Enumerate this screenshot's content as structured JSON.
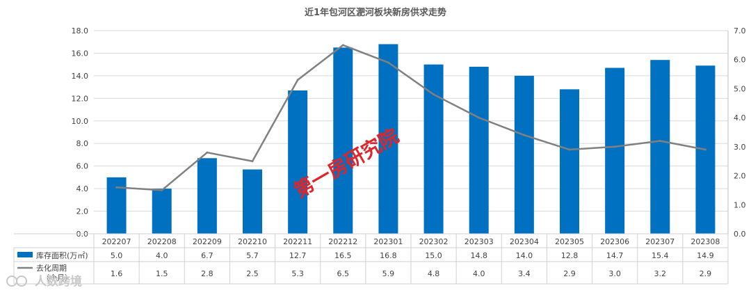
{
  "chart_data": {
    "type": "bar",
    "title": "近1年包河区淝河板块新房供求走势",
    "categories": [
      "202207",
      "202208",
      "202209",
      "202210",
      "202211",
      "202212",
      "202301",
      "202302",
      "202303",
      "202304",
      "202305",
      "202306",
      "202307",
      "202308"
    ],
    "series": [
      {
        "name": "库存面积(万㎡)",
        "type": "bar",
        "axis": "left",
        "values": [
          5.0,
          4.0,
          6.7,
          5.7,
          12.7,
          16.5,
          16.8,
          15.0,
          14.8,
          14.0,
          12.8,
          14.7,
          15.4,
          14.9
        ],
        "labels": [
          "5.0",
          "4.0",
          "6.7",
          "5.7",
          "12.7",
          "16.5",
          "16.8",
          "15.0",
          "14.8",
          "14.0",
          "12.8",
          "14.7",
          "15.4",
          "14.9"
        ]
      },
      {
        "name": "去化周期（个月）",
        "type": "line",
        "axis": "right",
        "values": [
          1.6,
          1.5,
          2.8,
          2.5,
          5.3,
          6.5,
          5.9,
          4.8,
          4.0,
          3.4,
          2.9,
          3.0,
          3.2,
          2.9
        ],
        "labels": [
          "1.6",
          "1.5",
          "2.8",
          "2.5",
          "5.3",
          "6.5",
          "5.9",
          "4.8",
          "4.0",
          "3.4",
          "2.9",
          "3.0",
          "3.2",
          "2.9"
        ]
      }
    ],
    "y_left": {
      "min": 0,
      "max": 18,
      "step": 2,
      "ticks": [
        "0.0",
        "2.0",
        "4.0",
        "6.0",
        "8.0",
        "10.0",
        "12.0",
        "14.0",
        "16.0",
        "18.0"
      ]
    },
    "y_right": {
      "min": 0,
      "max": 7,
      "step": 1,
      "ticks": [
        "0.0",
        "1.0",
        "2.0",
        "3.0",
        "4.0",
        "5.0",
        "6.0",
        "7.0"
      ]
    },
    "data_table": true,
    "colors": {
      "bar": "#0070c0",
      "line": "#808080"
    }
  },
  "watermark": "第一房研究院",
  "logo": {
    "icon": "infinity-logo-icon",
    "text": "人数跨境"
  }
}
